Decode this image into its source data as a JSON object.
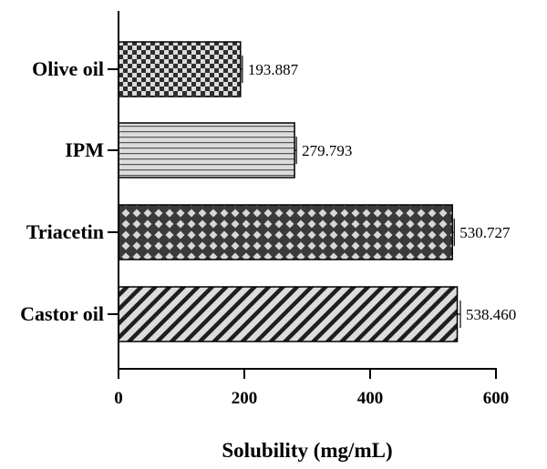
{
  "chart_data": {
    "type": "bar",
    "orientation": "horizontal",
    "categories": [
      "Olive oil",
      "IPM",
      "Triacetin",
      "Castor oil"
    ],
    "values": [
      193.887,
      279.793,
      530.727,
      538.46
    ],
    "value_labels": [
      "193.887",
      "279.793",
      "530.727",
      "538.460"
    ],
    "error": [
      3,
      3,
      3,
      5
    ],
    "patterns": [
      "checkerboard",
      "horizontal-lines",
      "diamond-lattice",
      "diagonal-stripes"
    ],
    "xlabel": "Solubility (mg/mL)",
    "ylabel": "",
    "xlim": [
      0,
      600
    ],
    "xticks": [
      "0",
      "200",
      "400",
      "600"
    ],
    "grid": false,
    "legend": "none",
    "colors": {
      "dark": "#3a3a3a",
      "light": "#dcdcdc",
      "axis": "#000000"
    }
  }
}
